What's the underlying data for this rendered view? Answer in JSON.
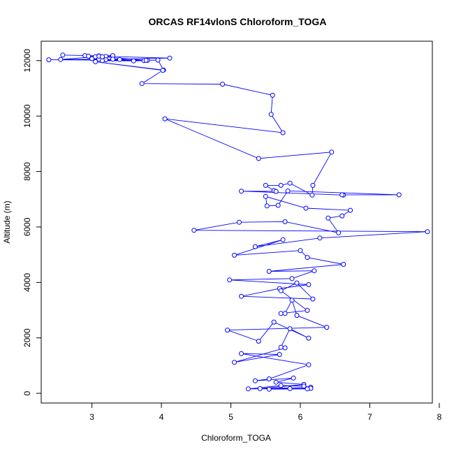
{
  "chart_data": {
    "type": "line",
    "title": "ORCAS RF14vlonS Chloroform_TOGA",
    "xlabel": "Chloroform_TOGA",
    "ylabel": "Altitude (m)",
    "xlim": [
      2.27,
      7.9
    ],
    "ylim": [
      -350,
      12700
    ],
    "x_ticks": [
      3,
      4,
      5,
      6,
      7,
      8
    ],
    "y_ticks": [
      0,
      2000,
      4000,
      6000,
      8000,
      10000,
      12000
    ],
    "grid": false,
    "legend": "none",
    "style": {
      "color": "#0000ff",
      "marker": "open-circle",
      "line": "solid"
    },
    "series": [
      {
        "x": [
          2.58,
          2.9,
          3.1,
          3.3,
          3.2,
          3.05,
          2.55,
          3.1,
          3.8,
          2.38,
          3.2,
          3.4,
          3.15,
          3.6,
          3.75,
          3.3,
          4.12,
          3.1,
          2.95,
          3.0,
          3.15,
          3.78,
          3.95,
          4.03,
          3.05,
          4.02,
          3.72,
          4.88,
          5.6,
          5.58,
          5.75,
          4.05,
          5.4,
          6.45,
          6.18,
          6.17,
          5.85,
          5.72,
          5.5,
          5.62,
          5.65,
          5.15,
          6.62,
          6.6,
          7.42,
          5.82,
          5.68,
          5.52,
          5.5,
          6.08,
          6.72,
          6.6,
          6.4,
          6.55,
          5.78,
          5.12,
          4.47,
          7.83,
          6.28,
          5.35,
          5.75,
          5.05,
          6.0,
          6.1,
          6.62,
          5.55,
          6.2,
          5.88,
          4.98,
          6.12,
          5.7,
          5.15,
          6.18,
          5.95,
          5.72,
          6.1,
          5.72,
          5.78,
          5.88,
          5.95,
          6.38,
          4.95,
          5.4,
          5.62,
          6.12,
          5.85,
          5.72,
          5.78,
          5.05,
          5.7,
          5.15,
          6.12,
          5.55,
          5.35,
          5.9,
          5.65,
          6.05,
          5.42,
          6.15,
          6.05,
          5.72,
          5.25,
          5.85,
          6.15,
          5.55,
          6.1
        ],
        "y": [
          12200,
          12180,
          12170,
          12180,
          12150,
          12140,
          12040,
          12050,
          12010,
          12030,
          12030,
          12040,
          12000,
          11990,
          12000,
          12050,
          12090,
          12160,
          12160,
          12070,
          12140,
          12010,
          12020,
          11660,
          11960,
          11650,
          11170,
          11150,
          10750,
          10060,
          9400,
          9900,
          8470,
          8700,
          7500,
          7150,
          7580,
          7500,
          7500,
          7310,
          7280,
          7290,
          7150,
          7160,
          7160,
          7300,
          6780,
          6760,
          7100,
          6680,
          6600,
          6400,
          6320,
          5790,
          6190,
          6170,
          5880,
          5830,
          5600,
          5290,
          5540,
          4980,
          5150,
          4900,
          4650,
          4400,
          4420,
          4140,
          4090,
          3920,
          3780,
          3500,
          3400,
          3980,
          3700,
          2990,
          2880,
          2880,
          3360,
          2810,
          2380,
          2280,
          1880,
          2570,
          1990,
          2330,
          1660,
          1640,
          1120,
          1400,
          1430,
          1030,
          520,
          450,
          550,
          400,
          320,
          170,
          220,
          260,
          280,
          160,
          170,
          180,
          150,
          160
        ]
      }
    ]
  }
}
